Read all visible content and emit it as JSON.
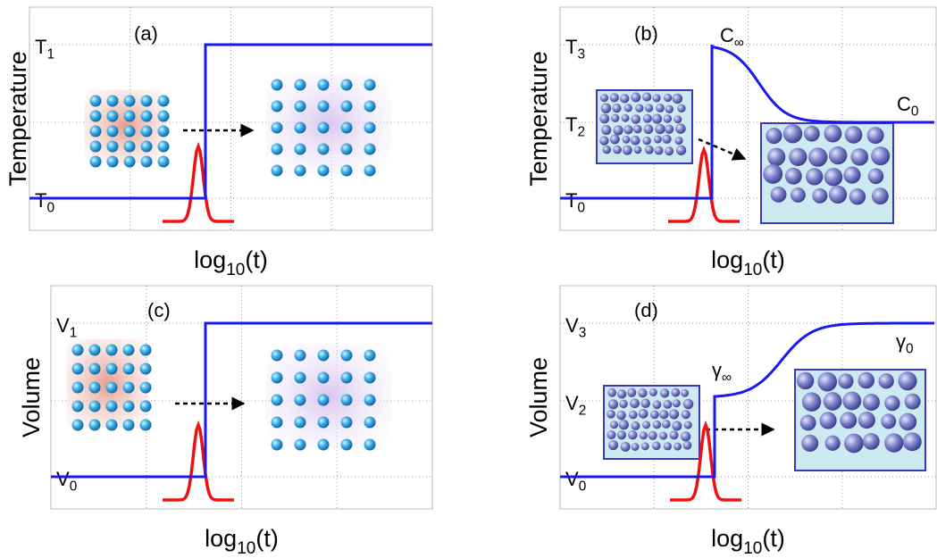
{
  "panels": [
    {
      "label": "(a)",
      "ylabel": "Temperature",
      "xlabel": {
        "text": "log",
        "sub": "10",
        "suffix": "(t)"
      },
      "levels": [
        {
          "main": "T",
          "sub": "1"
        },
        {
          "main": "T",
          "sub": "0"
        }
      ],
      "annotations": []
    },
    {
      "label": "(b)",
      "ylabel": "Temperature",
      "xlabel": {
        "text": "log",
        "sub": "10",
        "suffix": "(t)"
      },
      "levels": [
        {
          "main": "T",
          "sub": "3"
        },
        {
          "main": "T",
          "sub": "2"
        },
        {
          "main": "T",
          "sub": "0"
        }
      ],
      "annotations": [
        {
          "main": "C",
          "sub": "∞"
        },
        {
          "main": "C",
          "sub": "0"
        }
      ]
    },
    {
      "label": "(c)",
      "ylabel": "Volume",
      "xlabel": {
        "text": "log",
        "sub": "10",
        "suffix": "(t)"
      },
      "levels": [
        {
          "main": "V",
          "sub": "1"
        },
        {
          "main": "V",
          "sub": "0"
        }
      ],
      "annotations": []
    },
    {
      "label": "(d)",
      "ylabel": "Volume",
      "xlabel": {
        "text": "log",
        "sub": "10",
        "suffix": "(t)"
      },
      "levels": [
        {
          "main": "V",
          "sub": "3"
        },
        {
          "main": "V",
          "sub": "2"
        },
        {
          "main": "V",
          "sub": "0"
        }
      ],
      "annotations": [
        {
          "main": "γ",
          "sub": "∞"
        },
        {
          "main": "γ",
          "sub": "0"
        }
      ]
    }
  ]
}
